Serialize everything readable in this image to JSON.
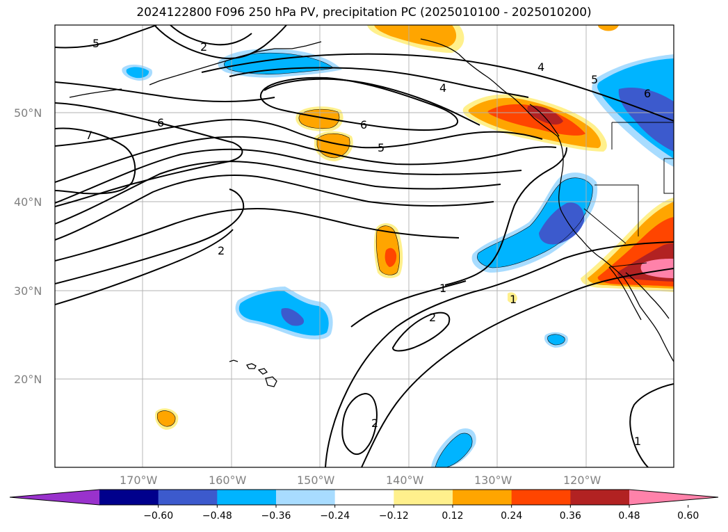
{
  "title": "2024122800 F096 250 hPa PV, precipitation PC (2025010100 - 2025010200)",
  "map": {
    "lon_labels": [
      "170°W",
      "160°W",
      "150°W",
      "140°W",
      "130°W",
      "120°W"
    ],
    "lat_labels": [
      "50°N",
      "40°N",
      "30°N",
      "20°N"
    ],
    "pv_contour_labels": [
      "5",
      "2",
      "7",
      "6",
      "4",
      "6",
      "5",
      "4",
      "5",
      "6",
      "2",
      "1",
      "2",
      "1",
      "2",
      "1"
    ],
    "positive_colors": [
      "#fff08c",
      "#ffa500",
      "#ff4500",
      "#b22222",
      "#ff82aa"
    ],
    "negative_colors": [
      "#a8dcff",
      "#00b4ff",
      "#3c5acd",
      "#00008c",
      "#9932cc"
    ],
    "contour_color": "#000000",
    "coast_color": "#000000",
    "grid": true
  },
  "colorbar": {
    "extend": "both",
    "colors": [
      "#9932cc",
      "#00008c",
      "#3c5acd",
      "#00b4ff",
      "#a8dcff",
      "#ffffff",
      "#fff08c",
      "#ffa500",
      "#ff4500",
      "#b22222",
      "#ff82aa"
    ],
    "tick_labels": [
      "−0.60",
      "−0.48",
      "−0.36",
      "−0.24",
      "−0.12",
      "0.12",
      "0.24",
      "0.36",
      "0.48",
      "0.60"
    ]
  }
}
